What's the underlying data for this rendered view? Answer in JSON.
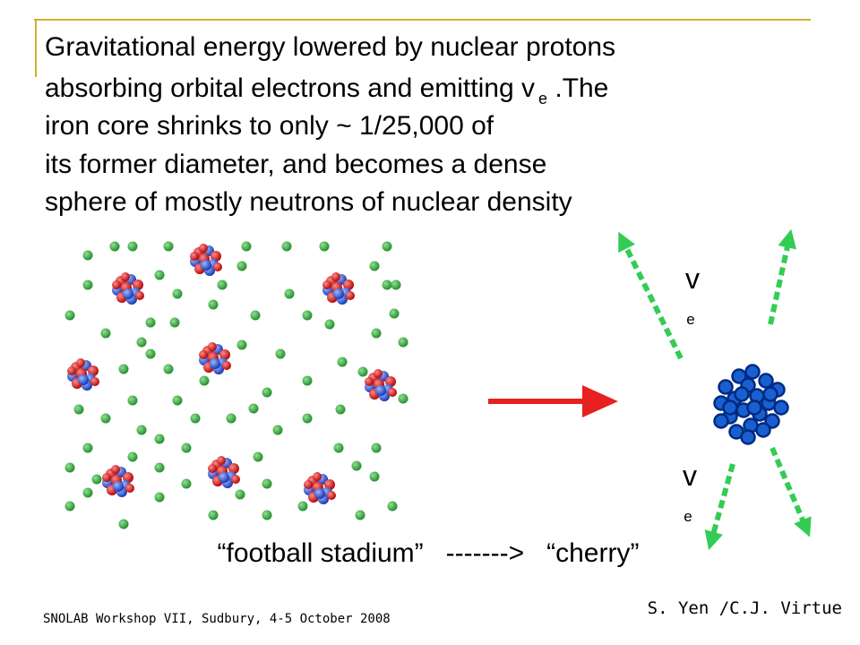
{
  "slide": {
    "title_lines": [
      {
        "text": "Gravitational energy lowered by nuclear protons"
      },
      {
        "text": "absorbing orbital electrons and emitting v",
        "subscript": "e",
        "after": " .The"
      },
      {
        "text": "iron core shrinks to only ~ 1/25,000 of"
      },
      {
        "text": "its former diameter, and becomes a dense"
      },
      {
        "text": "sphere of mostly neutrons of nuclear density"
      }
    ],
    "neutrino_labels": [
      {
        "symbol": "v",
        "subscript": "e"
      },
      {
        "symbol": "v",
        "subscript": "e"
      }
    ],
    "caption": "“football stadium”   ------->   “cherry”",
    "footer_left": "SNOLAB Workshop VII, Sudbury, 4-5 October 2008",
    "footer_right": "S. Yen /C.J. Virtue"
  }
}
